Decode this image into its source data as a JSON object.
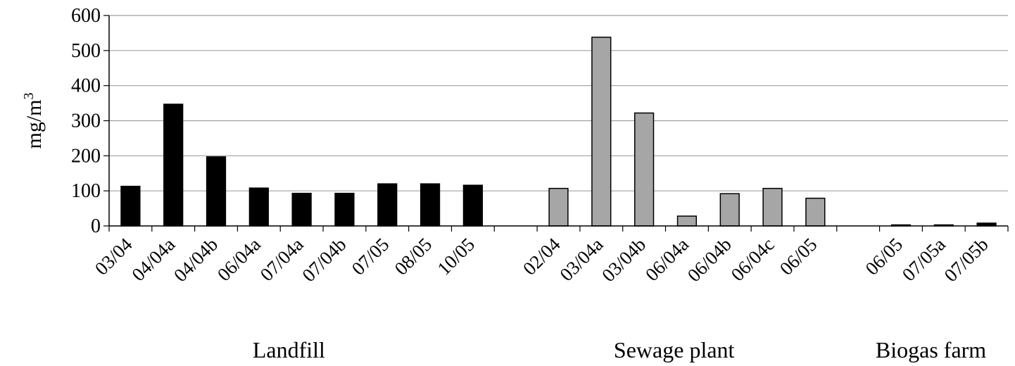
{
  "chart_data": {
    "type": "bar",
    "ylabel": "mg/m",
    "ylabel_superscript": "3",
    "ylim": [
      0,
      600
    ],
    "yticks": [
      "0",
      "100",
      "200",
      "300",
      "400",
      "500",
      "600"
    ],
    "grid": true,
    "legend": "none",
    "groups": [
      {
        "name": "Landfill",
        "color": "#000000",
        "categories": [
          "03/04",
          "04/04a",
          "04/04b",
          "06/04a",
          "07/04a",
          "07/04b",
          "07/05",
          "08/05",
          "10/05"
        ],
        "values": [
          113,
          347,
          197,
          108,
          93,
          93,
          120,
          120,
          116
        ]
      },
      {
        "name": "Sewage plant",
        "color": "#a6a6a6",
        "categories": [
          "02/04",
          "03/04a",
          "03/04b",
          "06/04a",
          "06/04b",
          "06/04c",
          "06/05"
        ],
        "values": [
          107,
          538,
          322,
          28,
          92,
          107,
          79
        ]
      },
      {
        "name": "Biogas farm",
        "color": "#000000",
        "categories": [
          "06/05",
          "07/05a",
          "07/05b"
        ],
        "values": [
          3,
          3,
          8
        ]
      }
    ]
  }
}
